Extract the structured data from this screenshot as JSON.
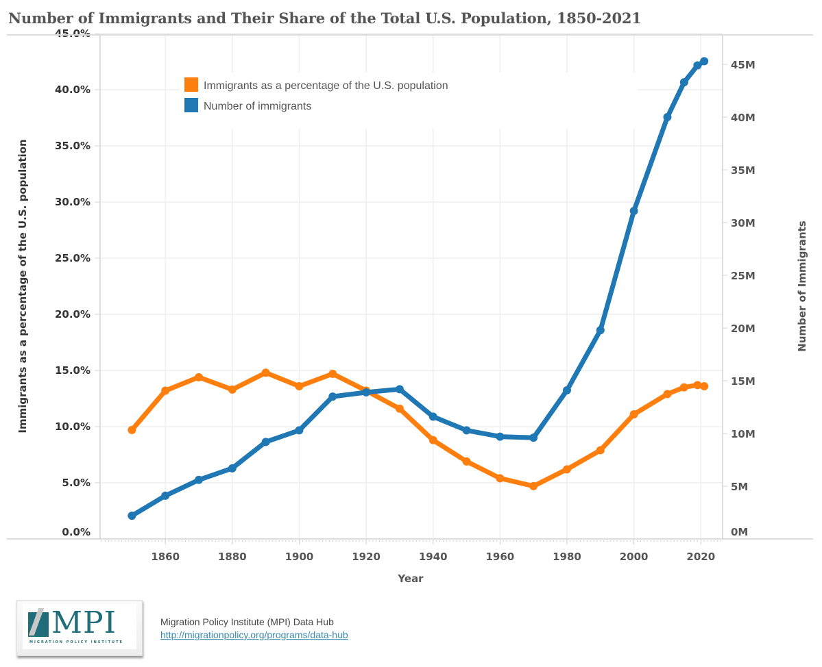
{
  "title": "Number of Immigrants and Their Share of the Total U.S. Population, 1850-2021",
  "footer": {
    "logo_text": "MPI",
    "logo_subtext": "MIGRATION POLICY INSTITUTE",
    "source_name": "Migration Policy Institute (MPI) Data Hub",
    "source_link": "http://migrationpolicy.org/programs/data-hub"
  },
  "colors": {
    "percent_series": "#ff7f0e",
    "number_series": "#1f77b4",
    "grid": "#eeeeee",
    "axis": "#d4d4d4"
  },
  "chart_data": {
    "type": "line",
    "title": "Number of Immigrants and Their Share of the Total U.S. Population, 1850-2021",
    "xlabel": "Year",
    "ylabel_left": "Immigrants as a percentage of the U.S. population",
    "ylabel_right": "Number of Immigrants",
    "x": [
      1850,
      1860,
      1870,
      1880,
      1890,
      1900,
      1910,
      1920,
      1930,
      1940,
      1950,
      1960,
      1970,
      1980,
      1990,
      2000,
      2010,
      2015,
      2019,
      2021
    ],
    "x_ticks": [
      "1860",
      "1880",
      "1900",
      "1920",
      "1940",
      "1960",
      "1980",
      "2000",
      "2020"
    ],
    "x_tick_values": [
      1860,
      1880,
      1900,
      1920,
      1940,
      1960,
      1980,
      2000,
      2020
    ],
    "xlim": [
      1840.5,
      2026.5
    ],
    "left_ticks": [
      "0.0%",
      "5.0%",
      "10.0%",
      "15.0%",
      "20.0%",
      "25.0%",
      "30.0%",
      "35.0%",
      "40.0%",
      "45.0%"
    ],
    "left_tick_values": [
      0,
      5,
      10,
      15,
      20,
      25,
      30,
      35,
      40,
      45
    ],
    "ylim_left": [
      0,
      45
    ],
    "right_ticks": [
      "0M",
      "5M",
      "10M",
      "15M",
      "20M",
      "25M",
      "30M",
      "35M",
      "40M",
      "45M"
    ],
    "right_tick_values": [
      0,
      5,
      10,
      15,
      20,
      25,
      30,
      35,
      40,
      45
    ],
    "ylim_right": [
      0,
      45
    ],
    "grid": true,
    "legend_position": "top-center",
    "series": [
      {
        "name": "Immigrants as a percentage of the U.S. population",
        "axis": "left",
        "unit": "%",
        "values": [
          9.7,
          13.2,
          14.4,
          13.3,
          14.8,
          13.6,
          14.7,
          13.2,
          11.6,
          8.8,
          6.9,
          5.4,
          4.7,
          6.2,
          7.9,
          11.1,
          12.9,
          13.5,
          13.7,
          13.6
        ]
      },
      {
        "name": "Number of immigrants",
        "axis": "right",
        "unit": "M",
        "values": [
          2.2,
          4.1,
          5.6,
          6.7,
          9.2,
          10.3,
          13.5,
          13.9,
          14.2,
          11.6,
          10.3,
          9.7,
          9.6,
          14.1,
          19.8,
          31.1,
          40.0,
          43.3,
          44.9,
          45.3
        ]
      }
    ]
  }
}
